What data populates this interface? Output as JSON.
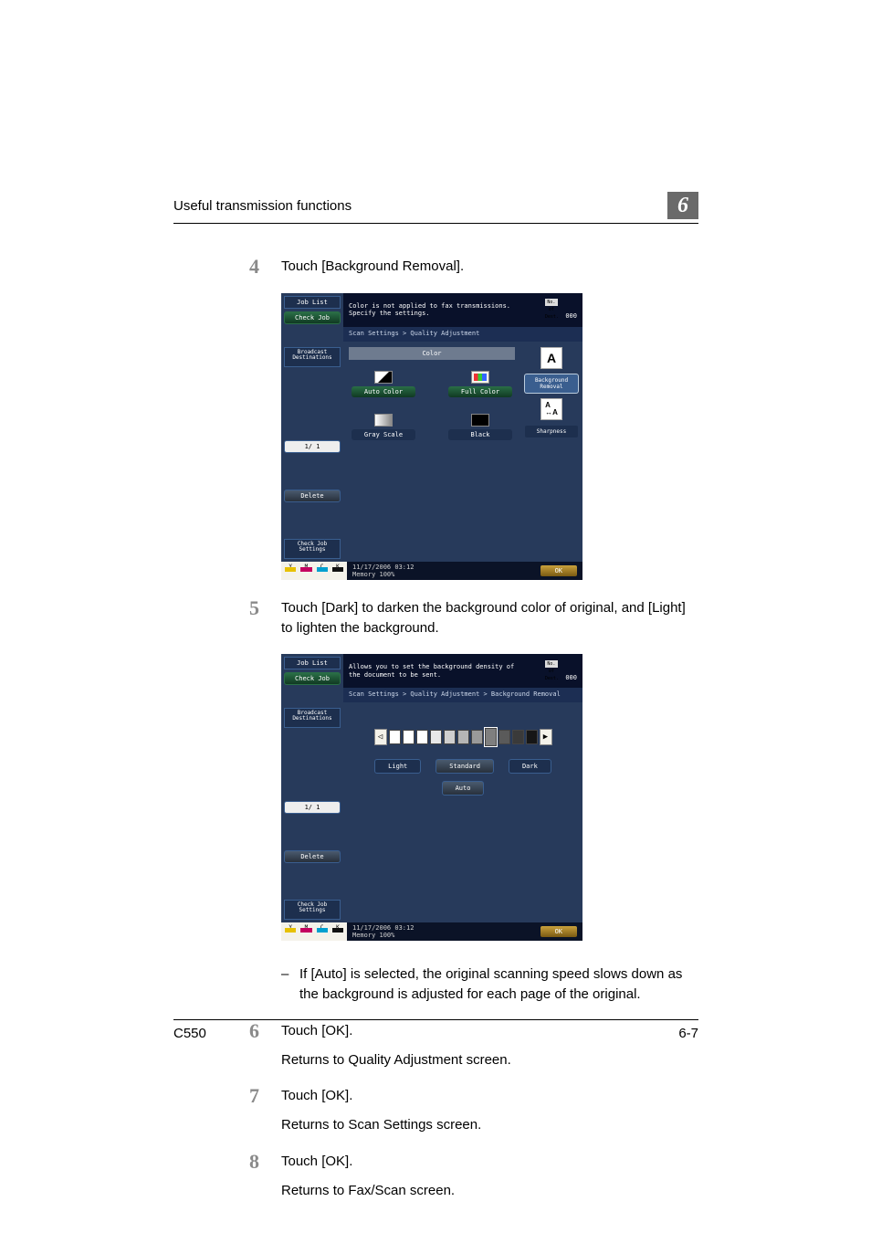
{
  "running_head": "Useful transmission functions",
  "chapter_number": "6",
  "footer_left": "C550",
  "footer_right": "6-7",
  "steps": {
    "s4": {
      "num": "4",
      "text": "Touch [Background Removal]."
    },
    "s5": {
      "num": "5",
      "text": "Touch [Dark] to darken the background color of original, and [Light] to lighten the background.",
      "sub": "If [Auto] is selected, the original scanning speed slows down as the background is adjusted for each page of the original."
    },
    "s6": {
      "num": "6",
      "text": "Touch [OK].",
      "after": "Returns to Quality Adjustment screen."
    },
    "s7": {
      "num": "7",
      "text": "Touch [OK].",
      "after": "Returns to Scan Settings screen."
    },
    "s8": {
      "num": "8",
      "text": "Touch [OK].",
      "after": "Returns to Fax/Scan screen."
    }
  },
  "mfp": {
    "job_list": "Job List",
    "check_job": "Check Job",
    "broadcast": "Broadcast\nDestinations",
    "page": "1/  1",
    "delete": "Delete",
    "check_set": "Check Job\nSettings",
    "toners": [
      "Y",
      "M",
      "C",
      "K"
    ],
    "datetime": "11/17/2006   03:12",
    "memory": "Memory        100%",
    "nos_label": "No. of\nDest.",
    "nos_val": "000",
    "ok": "OK"
  },
  "screen1": {
    "msg": "Color is not applied to fax transmissions.\nSpecify the settings.",
    "crumb": "Scan Settings > Quality Adjustment",
    "title": "Color",
    "opts": [
      "Auto Color",
      "Full Color",
      "Gray Scale",
      "Black"
    ],
    "side": [
      "Background\nRemoval",
      "Sharpness"
    ]
  },
  "screen2": {
    "msg": "Allows you to set the background density of\nthe document to be sent.",
    "crumb": "Scan Settings > Quality Adjustment > Background Removal",
    "seg_colors": [
      "#ffffff",
      "#ffffff",
      "#ffffff",
      "#e8e8e8",
      "#cfcfcf",
      "#b5b5b5",
      "#9a9a9a",
      "#7f7f7f",
      "#5a5a5a",
      "#3a3a3a",
      "#161616"
    ],
    "pointer_index": 7,
    "btns": [
      "Light",
      "Standard",
      "Dark"
    ],
    "auto": "Auto"
  }
}
